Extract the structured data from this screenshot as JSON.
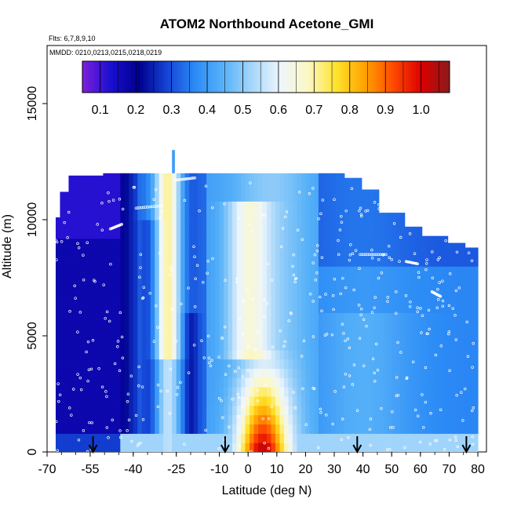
{
  "chart_data": {
    "type": "heatmap",
    "title": "ATOM2 Northbound Acetone_GMI",
    "flights_label": "Flts: 6,7,8,9,10",
    "dates_label": "MMDD: 0210,0213,0215,0218,0219",
    "xlabel": "Latitude (deg N)",
    "ylabel": "Altitude (m)",
    "xlim": [
      -70,
      83
    ],
    "ylim": [
      0,
      17500
    ],
    "x_ticks": [
      "-70",
      "-55",
      "-40",
      "-25",
      "-10",
      "0",
      "10",
      "20",
      "30",
      "40",
      "50",
      "60",
      "70",
      "80"
    ],
    "x_tick_values": [
      -70,
      -55,
      -40,
      -25,
      -10,
      0,
      10,
      20,
      30,
      40,
      50,
      60,
      70,
      80
    ],
    "y_ticks": [
      "0",
      "5000",
      "10000",
      "15000"
    ],
    "y_tick_values": [
      0,
      5000,
      10000,
      15000
    ],
    "colorbar": {
      "labels": [
        "0.1",
        "0.2",
        "0.3",
        "0.4",
        "0.5",
        "0.6",
        "0.7",
        "0.8",
        "0.9",
        "1.0"
      ],
      "values": [
        0.1,
        0.2,
        0.3,
        0.4,
        0.5,
        0.6,
        0.7,
        0.8,
        0.9,
        1.0
      ],
      "range": [
        0.05,
        1.08
      ],
      "colors": [
        "#7f1fdc",
        "#1a0fd0",
        "#00008e",
        "#1444d6",
        "#2c8cf6",
        "#58b2f8",
        "#a6d6fa",
        "#eef6fc",
        "#fbf7c4",
        "#ffe22a",
        "#ffa200",
        "#ff4a00",
        "#dc0000",
        "#8b1a1a"
      ]
    },
    "profile_arrows_lat": [
      -54,
      -8,
      38,
      76
    ],
    "field_description": "Low acetone (0.1-0.25) south of 40S, plume of 0.6-0.7 near 28S aloft, maximum 0.9-1.0 near 0-10N below 3 km, 0.3-0.5 across the northern hemisphere"
  }
}
